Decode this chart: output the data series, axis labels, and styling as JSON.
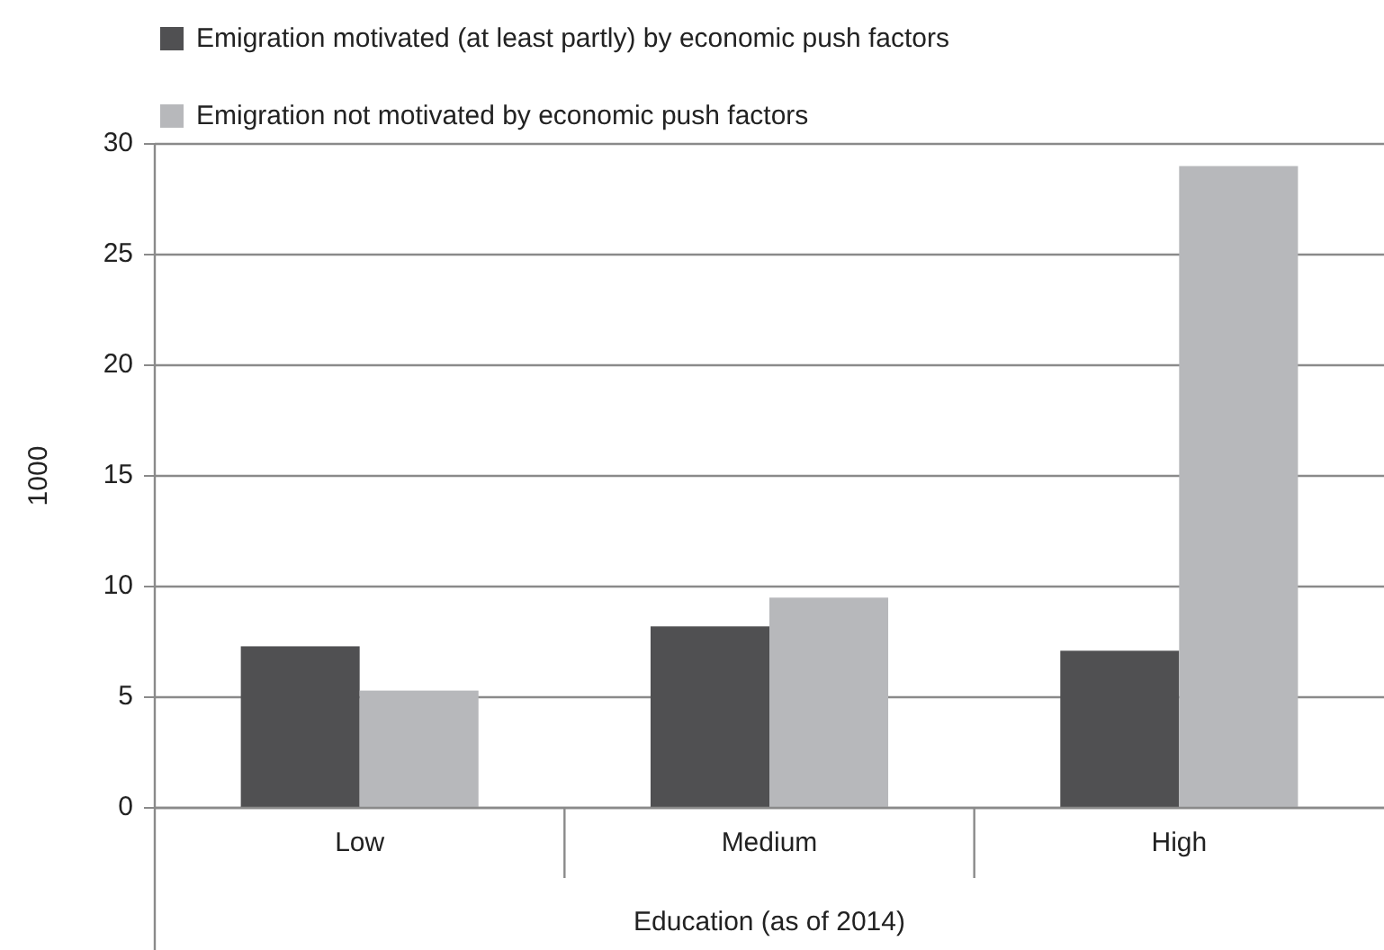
{
  "chart_data": {
    "type": "bar",
    "xlabel": "Education (as of 2014)",
    "ylabel": "1000",
    "categories": [
      "Low",
      "Medium",
      "High"
    ],
    "series": [
      {
        "name": "Emigration motivated (at least partly) by economic push factors",
        "color": "#505052",
        "values": [
          7.3,
          8.2,
          7.1
        ]
      },
      {
        "name": "Emigration not motivated  by economic push factors",
        "color": "#b7b8bb",
        "values": [
          5.3,
          9.5,
          29.0
        ]
      }
    ],
    "ylim": [
      0,
      30
    ],
    "yticks": [
      0,
      5,
      10,
      15,
      20,
      25,
      30
    ],
    "grid": "y",
    "legend": "top"
  }
}
